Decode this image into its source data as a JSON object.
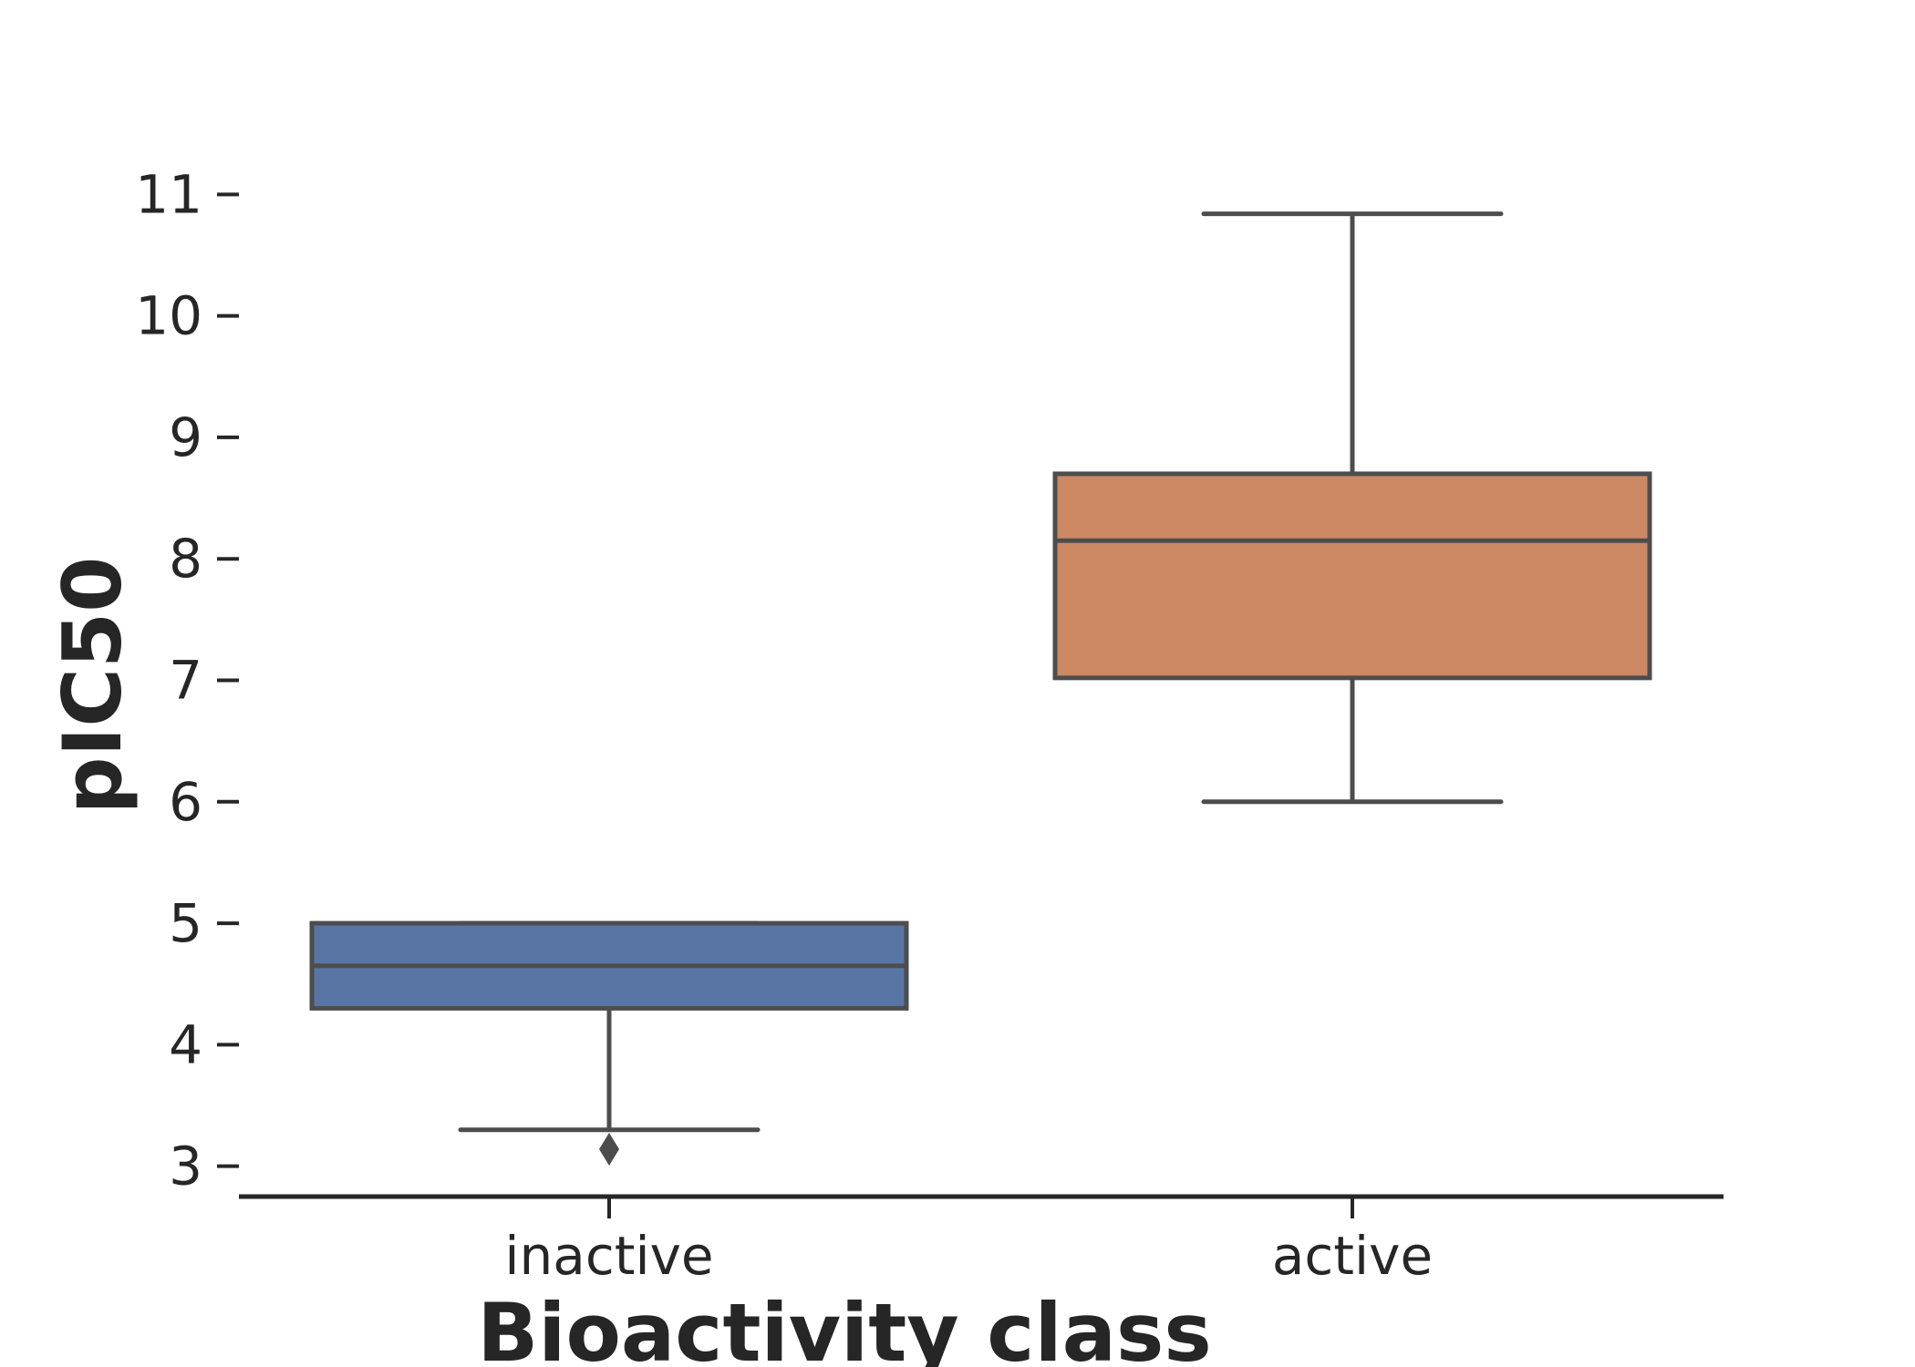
{
  "chart_data": {
    "type": "box",
    "xlabel": "Bioactivity class",
    "ylabel": "pIC50",
    "ylim": [
      2.75,
      11.25
    ],
    "yticks": [
      3,
      4,
      5,
      6,
      7,
      8,
      9,
      10,
      11
    ],
    "categories": [
      "inactive",
      "active"
    ],
    "boxes": [
      {
        "category": "inactive",
        "whisker_low": 3.3,
        "q1": 4.3,
        "median": 4.65,
        "q3": 5.0,
        "whisker_high": 5.0,
        "outliers": [
          3.14
        ],
        "color": "#5875a4"
      },
      {
        "category": "active",
        "whisker_low": 6.0,
        "q1": 7.02,
        "median": 8.15,
        "q3": 8.7,
        "whisker_high": 10.84,
        "outliers": [],
        "color": "#cc8963"
      }
    ],
    "edge_color": "#4d4d4d",
    "grid": false
  }
}
